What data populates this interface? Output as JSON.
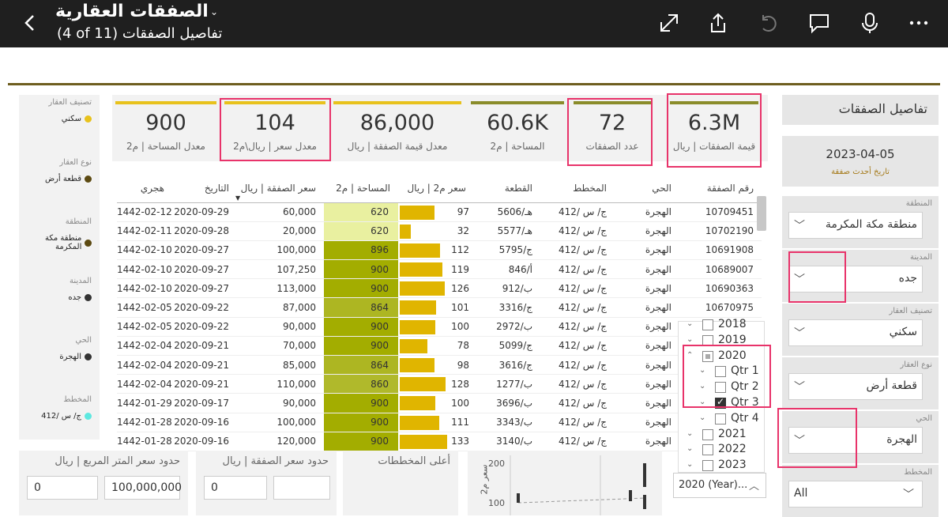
{
  "header": {
    "report_title": "الصفقات العقارية",
    "page_subtitle": "(4 of 11) تفاصيل الصفقات"
  },
  "left_summary": [
    {
      "label": "تصنيف العقار",
      "value": "سكني",
      "dot_color": "#e8c21c"
    },
    {
      "label": "نوع العقار",
      "value": "قطعة أرض",
      "dot_color": "#5c4a12"
    },
    {
      "label": "المنطقة",
      "value": "منطقة مكة المكرمة",
      "dot_color": "#5c4a12"
    },
    {
      "label": "المدينة",
      "value": "جده",
      "dot_color": "#333333"
    },
    {
      "label": "الحي",
      "value": "الهجرة",
      "dot_color": "#333333"
    },
    {
      "label": "المخطط",
      "value": "ج/ س /412",
      "dot_color": "#5ee8e0"
    }
  ],
  "kpis": [
    {
      "value": "900",
      "label": "معدل المساحة | م2",
      "bar_color": "#e8c21c"
    },
    {
      "value": "104",
      "label": "معدل سعر | ريال\\م2",
      "bar_color": "#e8c21c"
    },
    {
      "value": "86,000",
      "label": "معدل قيمة الصفقة | ريال",
      "bar_color": "#e8c21c"
    },
    {
      "value": "60.6K",
      "label": "المساحة | م2",
      "bar_color": "#8a8c2a"
    },
    {
      "value": "72",
      "label": "عدد الصفقات",
      "bar_color": "#8a8c2a"
    },
    {
      "value": "6.3M",
      "label": "قيمة الصفقات | ريال",
      "bar_color": "#8a8c2a"
    }
  ],
  "table": {
    "headers": {
      "hijri": "هجري",
      "date": "التاريخ",
      "price": "سعر الصفقة | ريال",
      "area": "المساحة | م2",
      "ppm": "سعر م2 | ريال",
      "plot": "القطعة",
      "plan": "المخطط",
      "district": "الحي",
      "deal": "رقم الصفقة"
    },
    "rows": [
      {
        "hijri": "1442-02-12",
        "date": "2020-09-29",
        "price": "60,000",
        "area": "620",
        "ppm": "97",
        "plot": "هـ/5606",
        "plan": "ج/ س /412",
        "district": "الهجرة",
        "deal": "10709451"
      },
      {
        "hijri": "1442-02-11",
        "date": "2020-09-28",
        "price": "20,000",
        "area": "620",
        "ppm": "32",
        "plot": "هـ/5577",
        "plan": "ج/ س /412",
        "district": "الهجرة",
        "deal": "10702190"
      },
      {
        "hijri": "1442-02-10",
        "date": "2020-09-27",
        "price": "100,000",
        "area": "896",
        "ppm": "112",
        "plot": "ج/5795",
        "plan": "ج/ س /412",
        "district": "الهجرة",
        "deal": "10691908"
      },
      {
        "hijri": "1442-02-10",
        "date": "2020-09-27",
        "price": "107,250",
        "area": "900",
        "ppm": "119",
        "plot": "أ/846",
        "plan": "ج/ س /412",
        "district": "الهجرة",
        "deal": "10689007"
      },
      {
        "hijri": "1442-02-10",
        "date": "2020-09-27",
        "price": "113,000",
        "area": "900",
        "ppm": "126",
        "plot": "ب/912",
        "plan": "ج/ س /412",
        "district": "الهجرة",
        "deal": "10690363"
      },
      {
        "hijri": "1442-02-05",
        "date": "2020-09-22",
        "price": "87,000",
        "area": "864",
        "ppm": "101",
        "plot": "ج/3316",
        "plan": "ج/ س /412",
        "district": "الهجرة",
        "deal": "10670975"
      },
      {
        "hijri": "1442-02-05",
        "date": "2020-09-22",
        "price": "90,000",
        "area": "900",
        "ppm": "100",
        "plot": "ب/2972",
        "plan": "ج/ س /412",
        "district": "الهجرة",
        "deal": ""
      },
      {
        "hijri": "1442-02-04",
        "date": "2020-09-21",
        "price": "70,000",
        "area": "900",
        "ppm": "78",
        "plot": "ج/5099",
        "plan": "ج/ س /412",
        "district": "الهجرة",
        "deal": ""
      },
      {
        "hijri": "1442-02-04",
        "date": "2020-09-21",
        "price": "85,000",
        "area": "864",
        "ppm": "98",
        "plot": "ج/3616",
        "plan": "ج/ س /412",
        "district": "الهجرة",
        "deal": ""
      },
      {
        "hijri": "1442-02-04",
        "date": "2020-09-21",
        "price": "110,000",
        "area": "860",
        "ppm": "128",
        "plot": "ب/1277",
        "plan": "ج/ س /412",
        "district": "الهجرة",
        "deal": ""
      },
      {
        "hijri": "1442-01-29",
        "date": "2020-09-17",
        "price": "90,000",
        "area": "900",
        "ppm": "100",
        "plot": "ب/3696",
        "plan": "ج/ س /412",
        "district": "الهجرة",
        "deal": ""
      },
      {
        "hijri": "1442-01-28",
        "date": "2020-09-16",
        "price": "100,000",
        "area": "900",
        "ppm": "111",
        "plot": "ب/3343",
        "plan": "ج/ س /412",
        "district": "الهجرة",
        "deal": ""
      },
      {
        "hijri": "1442-01-28",
        "date": "2020-09-16",
        "price": "120,000",
        "area": "900",
        "ppm": "133",
        "plot": "3140/ب",
        "plan": "ج/ س /412",
        "district": "الهجرة",
        "deal": ""
      }
    ]
  },
  "year_slicer": {
    "rows": [
      {
        "text": "2018",
        "state": "none",
        "level": 0
      },
      {
        "text": "2019",
        "state": "none",
        "level": 0
      },
      {
        "text": "2020",
        "state": "partial",
        "level": 0
      },
      {
        "text": "Qtr 1",
        "state": "none",
        "level": 1
      },
      {
        "text": "Qtr 2",
        "state": "none",
        "level": 1
      },
      {
        "text": "Qtr 3",
        "state": "checked",
        "level": 1
      },
      {
        "text": "Qtr 4",
        "state": "none",
        "level": 1
      },
      {
        "text": "2021",
        "state": "none",
        "level": 0
      },
      {
        "text": "2022",
        "state": "none",
        "level": 0
      },
      {
        "text": "2023",
        "state": "none",
        "level": 0
      }
    ],
    "selected": "2020 (Year)..."
  },
  "right_panel": {
    "title": "تفاصيل الصفقات",
    "last_date": "2023-04-05",
    "last_date_caption": "تاريخ أحدث صفقة",
    "slicers": [
      {
        "label": "المنطقة",
        "value": "منطقة مكة المكرمة"
      },
      {
        "label": "المدينة",
        "value": "جده"
      },
      {
        "label": "تصنيف العقار",
        "value": "سكني"
      },
      {
        "label": "نوع العقار",
        "value": "قطعة أرض"
      },
      {
        "label": "الحي",
        "value": "الهجرة"
      },
      {
        "label": "المخطط",
        "value": "All"
      }
    ]
  },
  "bottom": {
    "ppm_range": {
      "label": "حدود سعر المتر المربع | ريال",
      "min": "0",
      "max": "100,000,000"
    },
    "price_range": {
      "label": "حدود سعر الصفقة | ريال",
      "min": "0"
    },
    "top_plans": {
      "label": "أعلى المخططات"
    },
    "scatter": {
      "ylabel": "سعر م2",
      "ticks": [
        "200",
        "100"
      ]
    }
  }
}
